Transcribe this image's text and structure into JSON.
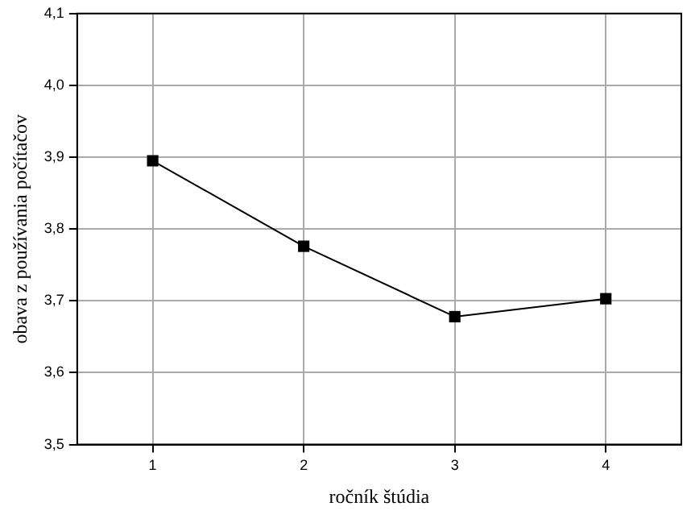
{
  "chart_data": {
    "type": "line",
    "xlabel": "ročník štúdia",
    "ylabel": "obava z používania počítačov",
    "x": [
      1,
      2,
      3,
      4
    ],
    "series": [
      {
        "color": "#000000",
        "values": [
          3.895,
          3.776,
          3.678,
          3.703
        ]
      }
    ],
    "xlim": [
      0.5,
      4.5
    ],
    "xticks": [
      1,
      2,
      3,
      4
    ],
    "ylim": [
      3.5,
      4.1
    ],
    "yticks": [
      {
        "value": 3.5,
        "label": "3,5"
      },
      {
        "value": 3.6,
        "label": "3,6"
      },
      {
        "value": 3.7,
        "label": "3,7"
      },
      {
        "value": 3.8,
        "label": "3,8"
      },
      {
        "value": 3.9,
        "label": "3,9"
      },
      {
        "value": 4.0,
        "label": "4,0"
      },
      {
        "value": 4.1,
        "label": "4,1"
      }
    ],
    "grid": true,
    "legend": false,
    "marker": "square",
    "line_style": "solid"
  }
}
